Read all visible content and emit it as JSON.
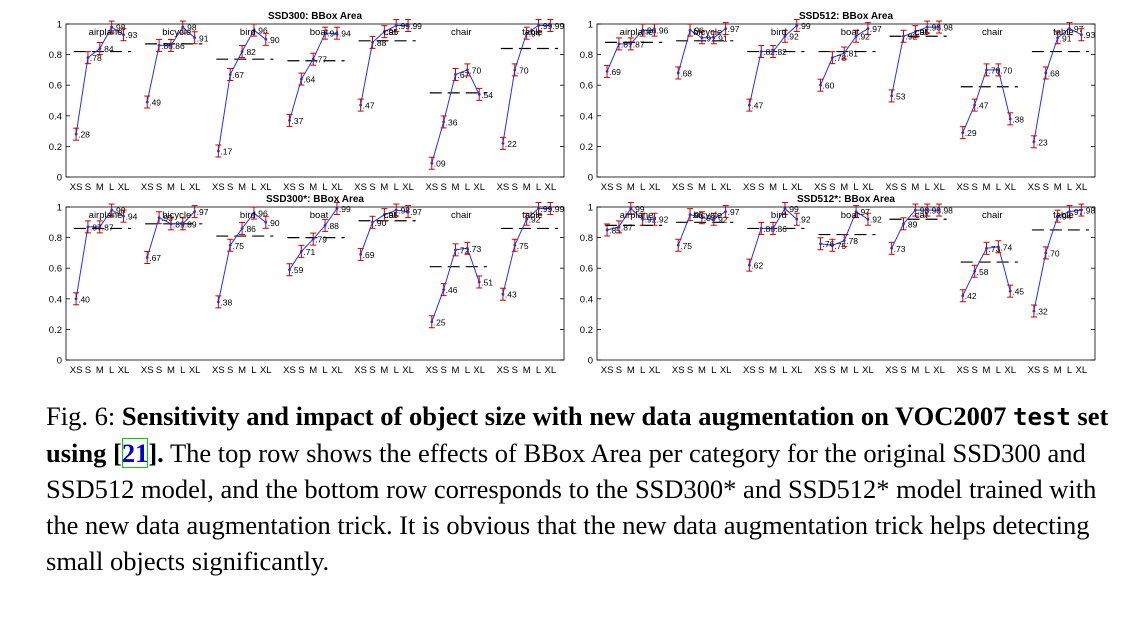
{
  "caption": {
    "fig_label": "Fig. 6: ",
    "bold_part1": "Sensitivity and impact of object size with new data augmentation on VOC2007 ",
    "bold_mono": "test",
    "bold_part2": " set using [",
    "cite": "21",
    "bold_part3": "].",
    "rest": " The top row shows the effects of BBox Area per category for the original SSD300 and SSD512 model, and the bottom row corresponds to the SSD300* and SSD512* model trained with the new data augmentation trick. It is obvious that the new data augmentation trick helps detecting small objects significantly."
  },
  "chart_data": [
    {
      "type": "line",
      "title": "SSD300: BBox Area",
      "x_tick_labels": [
        "XS",
        "S",
        "M",
        "L",
        "XL"
      ],
      "y_ticks": [
        0,
        0.2,
        0.4,
        0.6,
        0.8,
        1
      ],
      "ylim": [
        0,
        1
      ],
      "grid": false,
      "series": [
        {
          "name": "airplane",
          "values": [
            0.28,
            0.78,
            0.84,
            0.98,
            0.93
          ],
          "overall": 0.82
        },
        {
          "name": "bicycle",
          "values": [
            0.49,
            0.86,
            0.86,
            0.98,
            0.91
          ],
          "overall": 0.87
        },
        {
          "name": "bird",
          "values": [
            0.17,
            0.67,
            0.82,
            0.96,
            0.9
          ],
          "overall": 0.77
        },
        {
          "name": "boat",
          "values": [
            0.37,
            0.64,
            0.77,
            0.94,
            0.94
          ],
          "overall": 0.76
        },
        {
          "name": "cat",
          "values": [
            0.47,
            0.88,
            0.95,
            0.99,
            0.99
          ],
          "overall": 0.89
        },
        {
          "name": "chair",
          "values": [
            0.09,
            0.36,
            0.67,
            0.7,
            0.54
          ],
          "overall": 0.55
        },
        {
          "name": "table",
          "values": [
            0.22,
            0.7,
            0.94,
            0.99,
            0.99
          ],
          "overall": 0.84
        }
      ]
    },
    {
      "type": "line",
      "title": "SSD512: BBox Area",
      "x_tick_labels": [
        "XS",
        "S",
        "M",
        "L",
        "XL"
      ],
      "y_ticks": [
        0,
        0.2,
        0.4,
        0.6,
        0.8,
        1
      ],
      "ylim": [
        0,
        1
      ],
      "grid": false,
      "series": [
        {
          "name": "airplane",
          "values": [
            0.69,
            0.87,
            0.87,
            0.96,
            0.96
          ],
          "overall": 0.88
        },
        {
          "name": "bicycle",
          "values": [
            0.68,
            0.96,
            0.91,
            0.91,
            0.97
          ],
          "overall": 0.89
        },
        {
          "name": "bird",
          "values": [
            0.47,
            0.82,
            0.82,
            0.92,
            0.99
          ],
          "overall": 0.82
        },
        {
          "name": "boat",
          "values": [
            0.6,
            0.78,
            0.81,
            0.92,
            0.97
          ],
          "overall": 0.82
        },
        {
          "name": "cat",
          "values": [
            0.53,
            0.92,
            0.95,
            0.98,
            0.98
          ],
          "overall": 0.92
        },
        {
          "name": "chair",
          "values": [
            0.29,
            0.47,
            0.7,
            0.7,
            0.38
          ],
          "overall": 0.59
        },
        {
          "name": "table",
          "values": [
            0.23,
            0.68,
            0.91,
            0.97,
            0.93
          ],
          "overall": 0.82
        }
      ]
    },
    {
      "type": "line",
      "title": "SSD300*: BBox Area",
      "x_tick_labels": [
        "XS",
        "S",
        "M",
        "L",
        "XL"
      ],
      "y_ticks": [
        0,
        0.2,
        0.4,
        0.6,
        0.8,
        1
      ],
      "ylim": [
        0,
        1
      ],
      "grid": false,
      "series": [
        {
          "name": "airplane",
          "values": [
            0.4,
            0.87,
            0.87,
            0.98,
            0.94
          ],
          "overall": 0.86
        },
        {
          "name": "bicycle",
          "values": [
            0.67,
            0.93,
            0.89,
            0.89,
            0.97
          ],
          "overall": 0.89
        },
        {
          "name": "bird",
          "values": [
            0.38,
            0.75,
            0.86,
            0.96,
            0.9
          ],
          "overall": 0.81
        },
        {
          "name": "boat",
          "values": [
            0.59,
            0.71,
            0.79,
            0.88,
            0.99
          ],
          "overall": 0.8
        },
        {
          "name": "cat",
          "values": [
            0.69,
            0.9,
            0.95,
            0.98,
            0.97
          ],
          "overall": 0.91
        },
        {
          "name": "chair",
          "values": [
            0.25,
            0.46,
            0.72,
            0.73,
            0.51
          ],
          "overall": 0.61
        },
        {
          "name": "table",
          "values": [
            0.43,
            0.75,
            0.92,
            0.99,
            0.99
          ],
          "overall": 0.86
        }
      ]
    },
    {
      "type": "line",
      "title": "SSD512*: BBox Area",
      "x_tick_labels": [
        "XS",
        "S",
        "M",
        "L",
        "XL"
      ],
      "y_ticks": [
        0,
        0.2,
        0.4,
        0.6,
        0.8,
        1
      ],
      "ylim": [
        0,
        1
      ],
      "grid": false,
      "series": [
        {
          "name": "airplane",
          "values": [
            0.85,
            0.87,
            0.99,
            0.92,
            0.92
          ],
          "overall": 0.88
        },
        {
          "name": "bicycle",
          "values": [
            0.75,
            0.95,
            0.93,
            0.92,
            0.97
          ],
          "overall": 0.9
        },
        {
          "name": "bird",
          "values": [
            0.62,
            0.86,
            0.86,
            0.99,
            0.92
          ],
          "overall": 0.86
        },
        {
          "name": "boat",
          "values": [
            0.76,
            0.75,
            0.78,
            0.97,
            0.92
          ],
          "overall": 0.82
        },
        {
          "name": "cat",
          "values": [
            0.73,
            0.89,
            0.98,
            0.98,
            0.98
          ],
          "overall": 0.92
        },
        {
          "name": "chair",
          "values": [
            0.42,
            0.58,
            0.73,
            0.74,
            0.45
          ],
          "overall": 0.64
        },
        {
          "name": "table",
          "values": [
            0.32,
            0.7,
            0.94,
            0.97,
            0.98
          ],
          "overall": 0.85
        }
      ]
    }
  ],
  "colors": {
    "line": "#2233ee",
    "marker": "#cc0000",
    "overall": "#000000"
  }
}
